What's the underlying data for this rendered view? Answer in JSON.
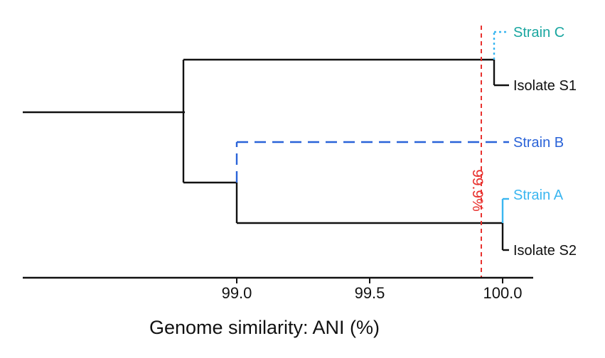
{
  "axis": {
    "title": "Genome similarity: ANI (%)",
    "min": 98.6,
    "max": 100.05,
    "ticks": [
      {
        "value": 99.0,
        "label": "99.0"
      },
      {
        "value": 99.5,
        "label": "99.5"
      },
      {
        "value": 100.0,
        "label": "100.0"
      }
    ]
  },
  "threshold": {
    "value": 99.9,
    "label": "99.9%",
    "color": "#e8322f"
  },
  "leaves": [
    {
      "id": "strain-c",
      "label": "Strain C",
      "ani": 99.95,
      "color": "#19a6a0",
      "line_color": "#3ab6f0",
      "style": "dotted"
    },
    {
      "id": "isolate-s1",
      "label": "Isolate S1",
      "ani": 99.95,
      "color": "#111111",
      "line_color": "#111111",
      "style": "solid"
    },
    {
      "id": "strain-b",
      "label": "Strain B",
      "ani": 100.0,
      "color": "#2a63d8",
      "line_color": "#2a63d8",
      "style": "dashed"
    },
    {
      "id": "strain-a",
      "label": "Strain A",
      "ani": 99.98,
      "color": "#3ab6f0",
      "line_color": "#3ab6f0",
      "style": "solid"
    },
    {
      "id": "isolate-s2",
      "label": "Isolate S2",
      "ani": 99.98,
      "color": "#111111",
      "line_color": "#111111",
      "style": "solid"
    }
  ],
  "nodes": [
    {
      "id": "root",
      "ani": 98.8,
      "children": [
        "node-c-s1",
        "node-b-a-s2"
      ]
    },
    {
      "id": "node-c-s1",
      "ani": 99.95,
      "children": [
        "strain-c",
        "isolate-s1"
      ]
    },
    {
      "id": "node-b-a-s2",
      "ani": 99.0,
      "children": [
        "strain-b",
        "node-a-s2"
      ]
    },
    {
      "id": "node-a-s2",
      "ani": 99.98,
      "children": [
        "strain-a",
        "isolate-s2"
      ]
    }
  ]
}
